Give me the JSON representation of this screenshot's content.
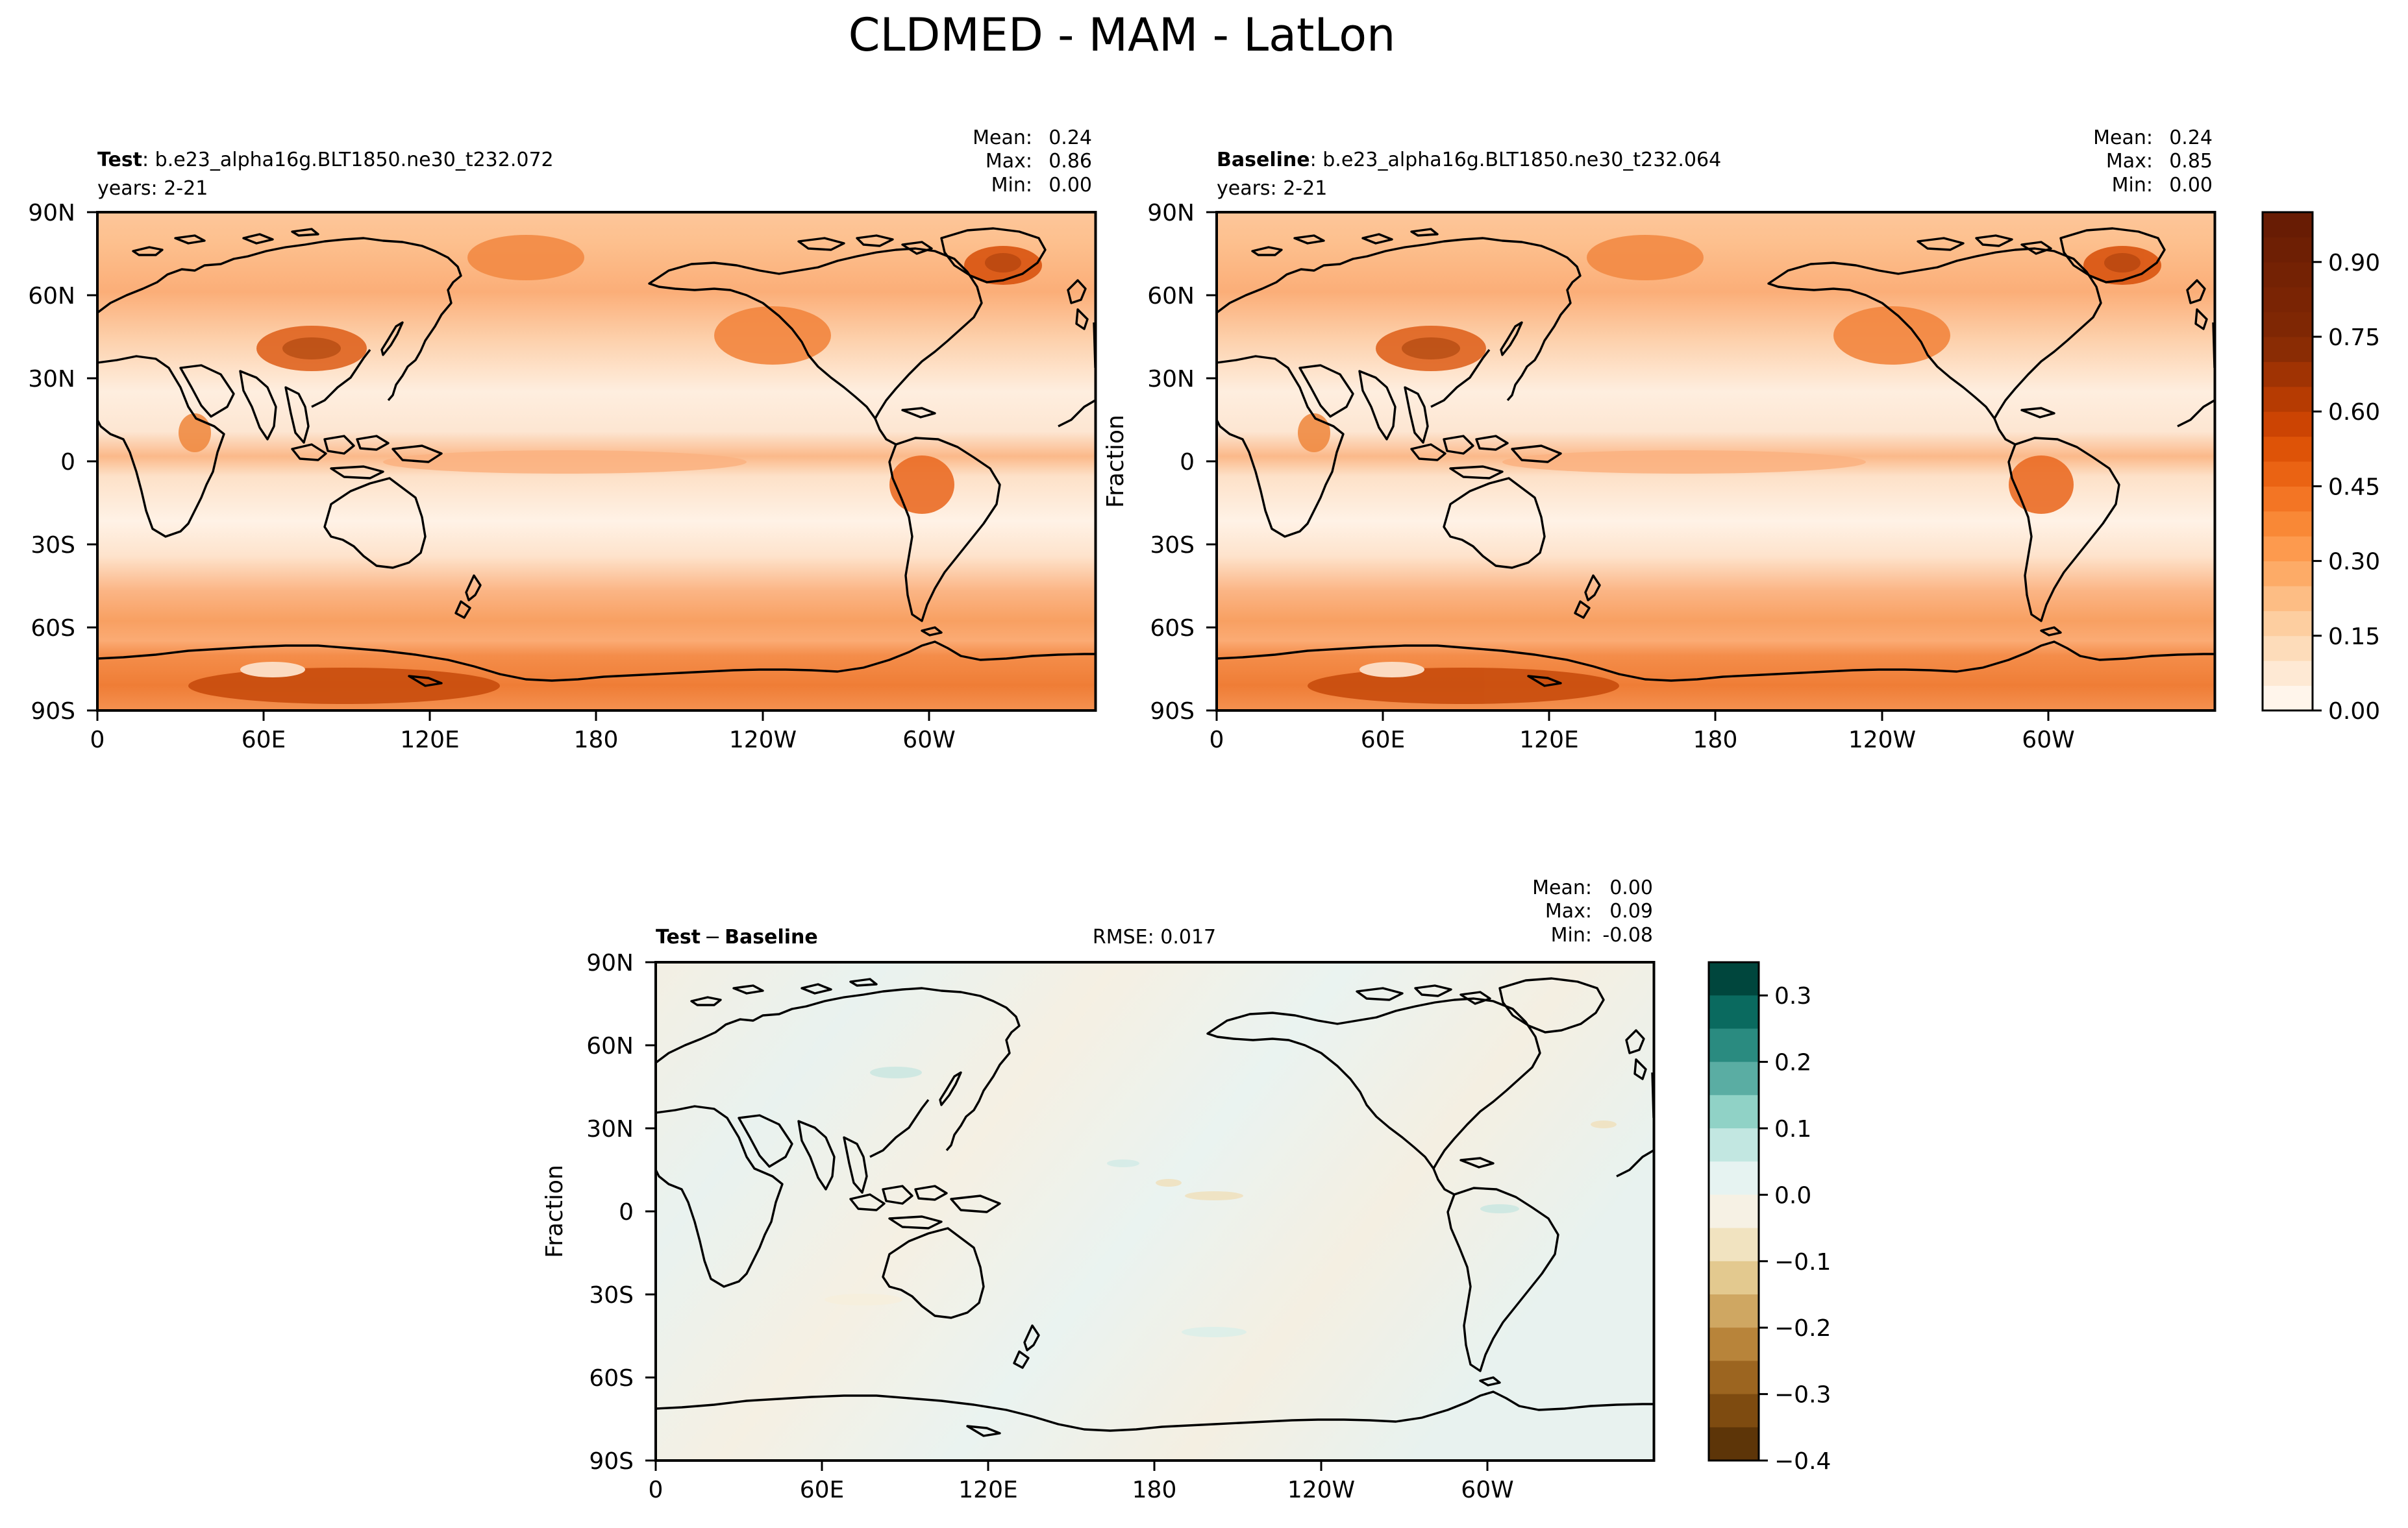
{
  "figure": {
    "title": "CLDMED - MAM - LatLon"
  },
  "panels": [
    {
      "id": "test",
      "label_bold": "Test",
      "label_rest": ": b.e23_alpha16g.BLT1850.ne30_t232.072",
      "years": "years: 2-21",
      "stats": {
        "mean_label": "Mean:",
        "mean": "0.24",
        "max_label": "Max:",
        "max": "0.86",
        "min_label": "Min:",
        "min": "0.00"
      }
    },
    {
      "id": "baseline",
      "label_bold": "Baseline",
      "label_rest": ": b.e23_alpha16g.BLT1850.ne30_t232.064",
      "years": "years: 2-21",
      "ylabel": "Fraction",
      "stats": {
        "mean_label": "Mean:",
        "mean": "0.24",
        "max_label": "Max:",
        "max": "0.85",
        "min_label": "Min:",
        "min": "0.00"
      }
    },
    {
      "id": "diff",
      "label_bold": "Test",
      "label_op": "−",
      "label_bold2": "Baseline",
      "rmse": "RMSE: 0.017",
      "ylabel": "Fraction",
      "stats": {
        "mean_label": "Mean:",
        "mean": "0.00",
        "max_label": "Max:",
        "max": "0.09",
        "min_label": "Min:",
        "min": "-0.08"
      }
    }
  ],
  "chart_data": [
    {
      "type": "heatmap",
      "name": "Test",
      "x_ticks": [
        "0",
        "60E",
        "120E",
        "180",
        "120W",
        "60W"
      ],
      "y_ticks": [
        "90N",
        "60N",
        "30N",
        "0",
        "30S",
        "60S",
        "90S"
      ],
      "xlim": [
        0,
        360
      ],
      "ylim": [
        -90,
        90
      ],
      "colormap": "Oranges",
      "value_range": [
        0.0,
        1.0
      ]
    },
    {
      "type": "heatmap",
      "name": "Baseline",
      "x_ticks": [
        "0",
        "60E",
        "120E",
        "180",
        "120W",
        "60W"
      ],
      "y_ticks": [
        "90N",
        "60N",
        "30N",
        "0",
        "30S",
        "60S",
        "90S"
      ],
      "xlim": [
        0,
        360
      ],
      "ylim": [
        -90,
        90
      ],
      "colormap": "Oranges",
      "value_range": [
        0.0,
        1.0
      ],
      "ylabel": "Fraction",
      "colorbar": {
        "ticks": [
          "0.00",
          "0.15",
          "0.30",
          "0.45",
          "0.60",
          "0.75",
          "0.90"
        ],
        "tick_values": [
          0.0,
          0.15,
          0.3,
          0.45,
          0.6,
          0.75,
          0.9
        ],
        "range": [
          0.0,
          1.0
        ],
        "levels": 20,
        "colors": [
          "#fff5eb",
          "#fee9d4",
          "#fddcba",
          "#fdcea0",
          "#fdbd84",
          "#fdab67",
          "#fd9a4e",
          "#f98836",
          "#f37524",
          "#ea6313",
          "#de5307",
          "#cc4403",
          "#b63b02",
          "#a03303",
          "#8a2c04",
          "#7f2704",
          "#7a2404",
          "#742204",
          "#6e1f04",
          "#681c04"
        ]
      }
    },
    {
      "type": "heatmap",
      "name": "Test − Baseline",
      "x_ticks": [
        "0",
        "60E",
        "120E",
        "180",
        "120W",
        "60W"
      ],
      "y_ticks": [
        "90N",
        "60N",
        "30N",
        "0",
        "30S",
        "60S",
        "90S"
      ],
      "xlim": [
        0,
        360
      ],
      "ylim": [
        -90,
        90
      ],
      "colormap": "BrBG",
      "ylabel": "Fraction",
      "colorbar": {
        "ticks": [
          "0.3",
          "0.2",
          "0.1",
          "0.0",
          "−0.1",
          "−0.2",
          "−0.3",
          "−0.4"
        ],
        "tick_values": [
          0.3,
          0.2,
          0.1,
          0.0,
          -0.1,
          -0.2,
          -0.3,
          -0.4
        ],
        "range": [
          -0.4,
          0.35
        ],
        "levels": [
          {
            "lo": 0.3,
            "hi": 0.35,
            "color": "#00463d"
          },
          {
            "lo": 0.25,
            "hi": 0.3,
            "color": "#0a6a5f"
          },
          {
            "lo": 0.2,
            "hi": 0.25,
            "color": "#2a8b80"
          },
          {
            "lo": 0.15,
            "hi": 0.2,
            "color": "#5aada3"
          },
          {
            "lo": 0.1,
            "hi": 0.15,
            "color": "#90d2c6"
          },
          {
            "lo": 0.05,
            "hi": 0.1,
            "color": "#c2e7e1"
          },
          {
            "lo": 0.0,
            "hi": 0.05,
            "color": "#e6f3f1"
          },
          {
            "lo": -0.05,
            "hi": 0.0,
            "color": "#f6f1e4"
          },
          {
            "lo": -0.1,
            "hi": -0.05,
            "color": "#f1e3c0"
          },
          {
            "lo": -0.15,
            "hi": -0.1,
            "color": "#e3c98f"
          },
          {
            "lo": -0.2,
            "hi": -0.15,
            "color": "#cfa762"
          },
          {
            "lo": -0.25,
            "hi": -0.2,
            "color": "#b8843a"
          },
          {
            "lo": -0.3,
            "hi": -0.25,
            "color": "#9c6520"
          },
          {
            "lo": -0.35,
            "hi": -0.3,
            "color": "#7e4b10"
          },
          {
            "lo": -0.4,
            "hi": -0.35,
            "color": "#5d3508"
          }
        ]
      }
    }
  ]
}
